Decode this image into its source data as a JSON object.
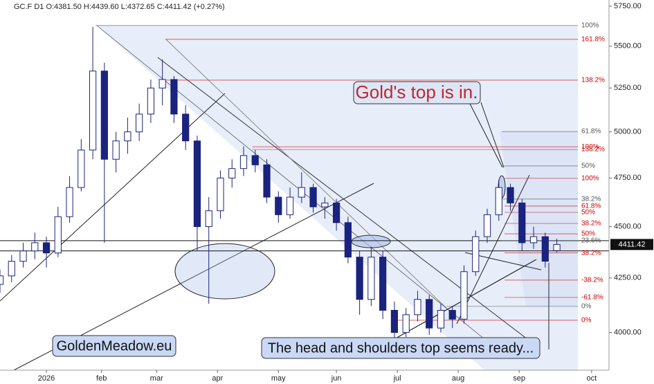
{
  "chart_data": {
    "type": "candlestick",
    "header": "GC.F  D1  O:4381.50  H:4439.60  L:4372.65  C:4411.42  (+0.27%)",
    "x": [
      -16,
      -12,
      -8,
      -4,
      0,
      4,
      8,
      12,
      16,
      20,
      24,
      28,
      32,
      36,
      40,
      44,
      48,
      52,
      56,
      60,
      64,
      68,
      72,
      76,
      80,
      84,
      88,
      92,
      96,
      100,
      104,
      108,
      112,
      116,
      120,
      124,
      128,
      132,
      136,
      140,
      144,
      148,
      152,
      156,
      160,
      164,
      168,
      172,
      176
    ],
    "open": [
      4220,
      4260,
      4330,
      4380,
      4420,
      4370,
      4550,
      4700,
      4900,
      5350,
      4850,
      4950,
      5000,
      5100,
      5250,
      5300,
      5100,
      4950,
      4500,
      4580,
      4750,
      4800,
      4870,
      4820,
      4650,
      4560,
      4650,
      4700,
      4600,
      4620,
      4520,
      4350,
      4150,
      4350,
      4100,
      4000,
      4080,
      4150,
      4020,
      4100,
      4060,
      4280,
      4450,
      4560,
      4700,
      4620,
      4420,
      4450,
      4381.5
    ],
    "high": [
      4290,
      4360,
      4420,
      4470,
      4450,
      4600,
      4760,
      4960,
      5620,
      5400,
      5000,
      5080,
      5160,
      5300,
      5420,
      5320,
      5150,
      4980,
      4650,
      4790,
      4850,
      4920,
      4900,
      4850,
      4680,
      4700,
      4780,
      4720,
      4650,
      4640,
      4550,
      4380,
      4400,
      4380,
      4140,
      4110,
      4190,
      4170,
      4130,
      4120,
      4310,
      4480,
      4590,
      4740,
      4720,
      4640,
      4500,
      4470,
      4439.6
    ],
    "low": [
      4180,
      4230,
      4300,
      4340,
      4300,
      4350,
      4520,
      4680,
      4850,
      4420,
      4780,
      4880,
      4950,
      5050,
      5150,
      5050,
      4900,
      4380,
      4130,
      4540,
      4700,
      4760,
      4780,
      4620,
      4520,
      4540,
      4620,
      4570,
      4540,
      4480,
      4320,
      4080,
      4120,
      4060,
      3950,
      3980,
      4050,
      3990,
      4000,
      4020,
      4040,
      4260,
      4420,
      4530,
      4580,
      4380,
      4390,
      4300,
      4372.65
    ],
    "close": [
      4260,
      4330,
      4380,
      4420,
      4370,
      4550,
      4700,
      4900,
      5350,
      4850,
      4950,
      5000,
      5100,
      5250,
      5300,
      5100,
      4950,
      4500,
      4580,
      4750,
      4800,
      4870,
      4820,
      4650,
      4560,
      4650,
      4700,
      4600,
      4620,
      4520,
      4350,
      4150,
      4350,
      4100,
      4000,
      4080,
      4150,
      4020,
      4100,
      4060,
      4280,
      4450,
      4560,
      4700,
      4620,
      4420,
      4450,
      4330,
      4411.42
    ],
    "up_color": "#ffffff",
    "down_color": "#1a237e",
    "edge_color": "#1a237e",
    "log_scale": true,
    "xlim": [
      -16,
      194
    ],
    "xticks": [
      {
        "value": 0,
        "label": "2026"
      },
      {
        "value": 19,
        "label": "feb"
      },
      {
        "value": 38,
        "label": "mar"
      },
      {
        "value": 59,
        "label": "apr"
      },
      {
        "value": 80,
        "label": "may"
      },
      {
        "value": 100,
        "label": "jun"
      },
      {
        "value": 121,
        "label": "jul"
      },
      {
        "value": 142,
        "label": "aug"
      },
      {
        "value": 163,
        "label": "sep"
      },
      {
        "value": 188,
        "label": "oct"
      }
    ],
    "ylim": [
      3836,
      5790
    ],
    "yticks": [
      {
        "value": 4000,
        "label": "4000.00"
      },
      {
        "value": 4250,
        "label": "4250.00"
      },
      {
        "value": 4500,
        "label": "4500.00"
      },
      {
        "value": 4750,
        "label": "4750.00"
      },
      {
        "value": 5000,
        "label": "5000.00"
      },
      {
        "value": 5250,
        "label": "5250.00"
      },
      {
        "value": 5500,
        "label": "5500.00"
      },
      {
        "value": 5750,
        "label": "5750.00"
      }
    ],
    "neckline_levels": [
      4430,
      4380
    ],
    "fib_levels": [
      {
        "label": "100%",
        "value": 5628,
        "color": "#555555",
        "from": 17
      },
      {
        "label": "161.8%",
        "value": 5542,
        "color": "#cc0000",
        "from": 41
      },
      {
        "label": "138.2%",
        "value": 5296,
        "color": "#cc0000",
        "from": 41
      },
      {
        "label": "61.8%",
        "value": 5002,
        "color": "#555555",
        "from": 157
      },
      {
        "label": "100%",
        "value": 4918,
        "color": "#cc0000",
        "from": 71
      },
      {
        "label": "138.2%",
        "value": 4903,
        "color": "#cc0000",
        "from": 71
      },
      {
        "label": "50%",
        "value": 4814,
        "color": "#555555",
        "from": 157
      },
      {
        "label": "100%",
        "value": 4748,
        "color": "#cc0000",
        "from": 158
      },
      {
        "label": "38.2%",
        "value": 4640,
        "color": "#555555",
        "from": 157
      },
      {
        "label": "61.8%",
        "value": 4604,
        "color": "#cc0000",
        "from": 158
      },
      {
        "label": "50%",
        "value": 4572,
        "color": "#cc0000",
        "from": 158
      },
      {
        "label": "38.2%",
        "value": 4516,
        "color": "#cc0000",
        "from": 158
      },
      {
        "label": "50%",
        "value": 4464,
        "color": "#cc0000",
        "from": 158
      },
      {
        "label": "23.6%",
        "value": 4430,
        "color": "#555555",
        "from": 157
      },
      {
        "label": "38.2%",
        "value": 4370,
        "color": "#cc0000",
        "from": 158
      },
      {
        "label": "-38.2%",
        "value": 4240,
        "color": "#cc0000",
        "from": 158
      },
      {
        "label": "-61.8%",
        "value": 4159,
        "color": "#cc0000",
        "from": 158
      },
      {
        "label": "0%",
        "value": 4118,
        "color": "#555555",
        "from": 138
      },
      {
        "label": "0%",
        "value": 4055,
        "color": "#cc0000",
        "from": 121
      }
    ],
    "annotations": [
      "Gold's top is in.",
      "GoldenMeadow.eu",
      "The head and shoulders top seems ready..."
    ]
  }
}
